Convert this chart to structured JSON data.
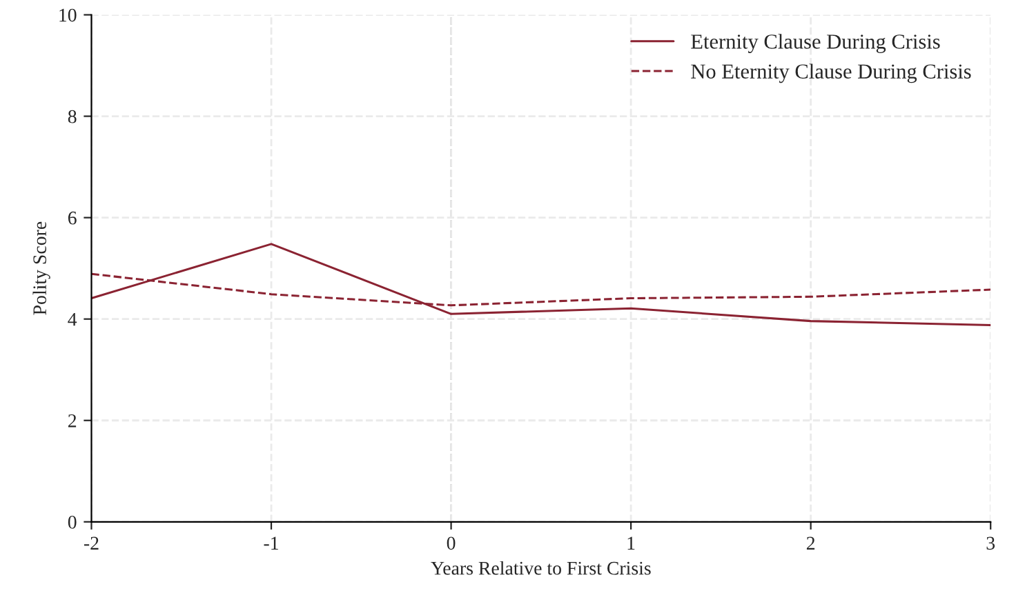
{
  "chart_data": {
    "type": "line",
    "xlabel": "Years Relative to First Crisis",
    "ylabel": "Polity Score",
    "x": [
      -2,
      -1,
      0,
      1,
      2,
      3
    ],
    "series": [
      {
        "name": "Eternity Clause During Crisis",
        "color": "#8b2332",
        "line_style": "solid",
        "values": [
          4.41,
          5.48,
          4.1,
          4.21,
          3.96,
          3.88
        ]
      },
      {
        "name": "No Eternity Clause During Crisis",
        "color": "#8b2332",
        "line_style": "dashed",
        "values": [
          4.89,
          4.49,
          4.27,
          4.41,
          4.44,
          4.58
        ]
      }
    ],
    "xlim": [
      -2,
      3
    ],
    "xticks": [
      -2,
      -1,
      0,
      1,
      2,
      3
    ],
    "ylim": [
      0,
      10
    ],
    "yticks": [
      0,
      2,
      4,
      6,
      8,
      10
    ],
    "ref_lines": [
      {
        "axis": "x",
        "value": 0,
        "color": "#b0b0b0",
        "line_style": "dashed"
      }
    ],
    "grid": true,
    "legend": "top right",
    "marker": "none"
  }
}
